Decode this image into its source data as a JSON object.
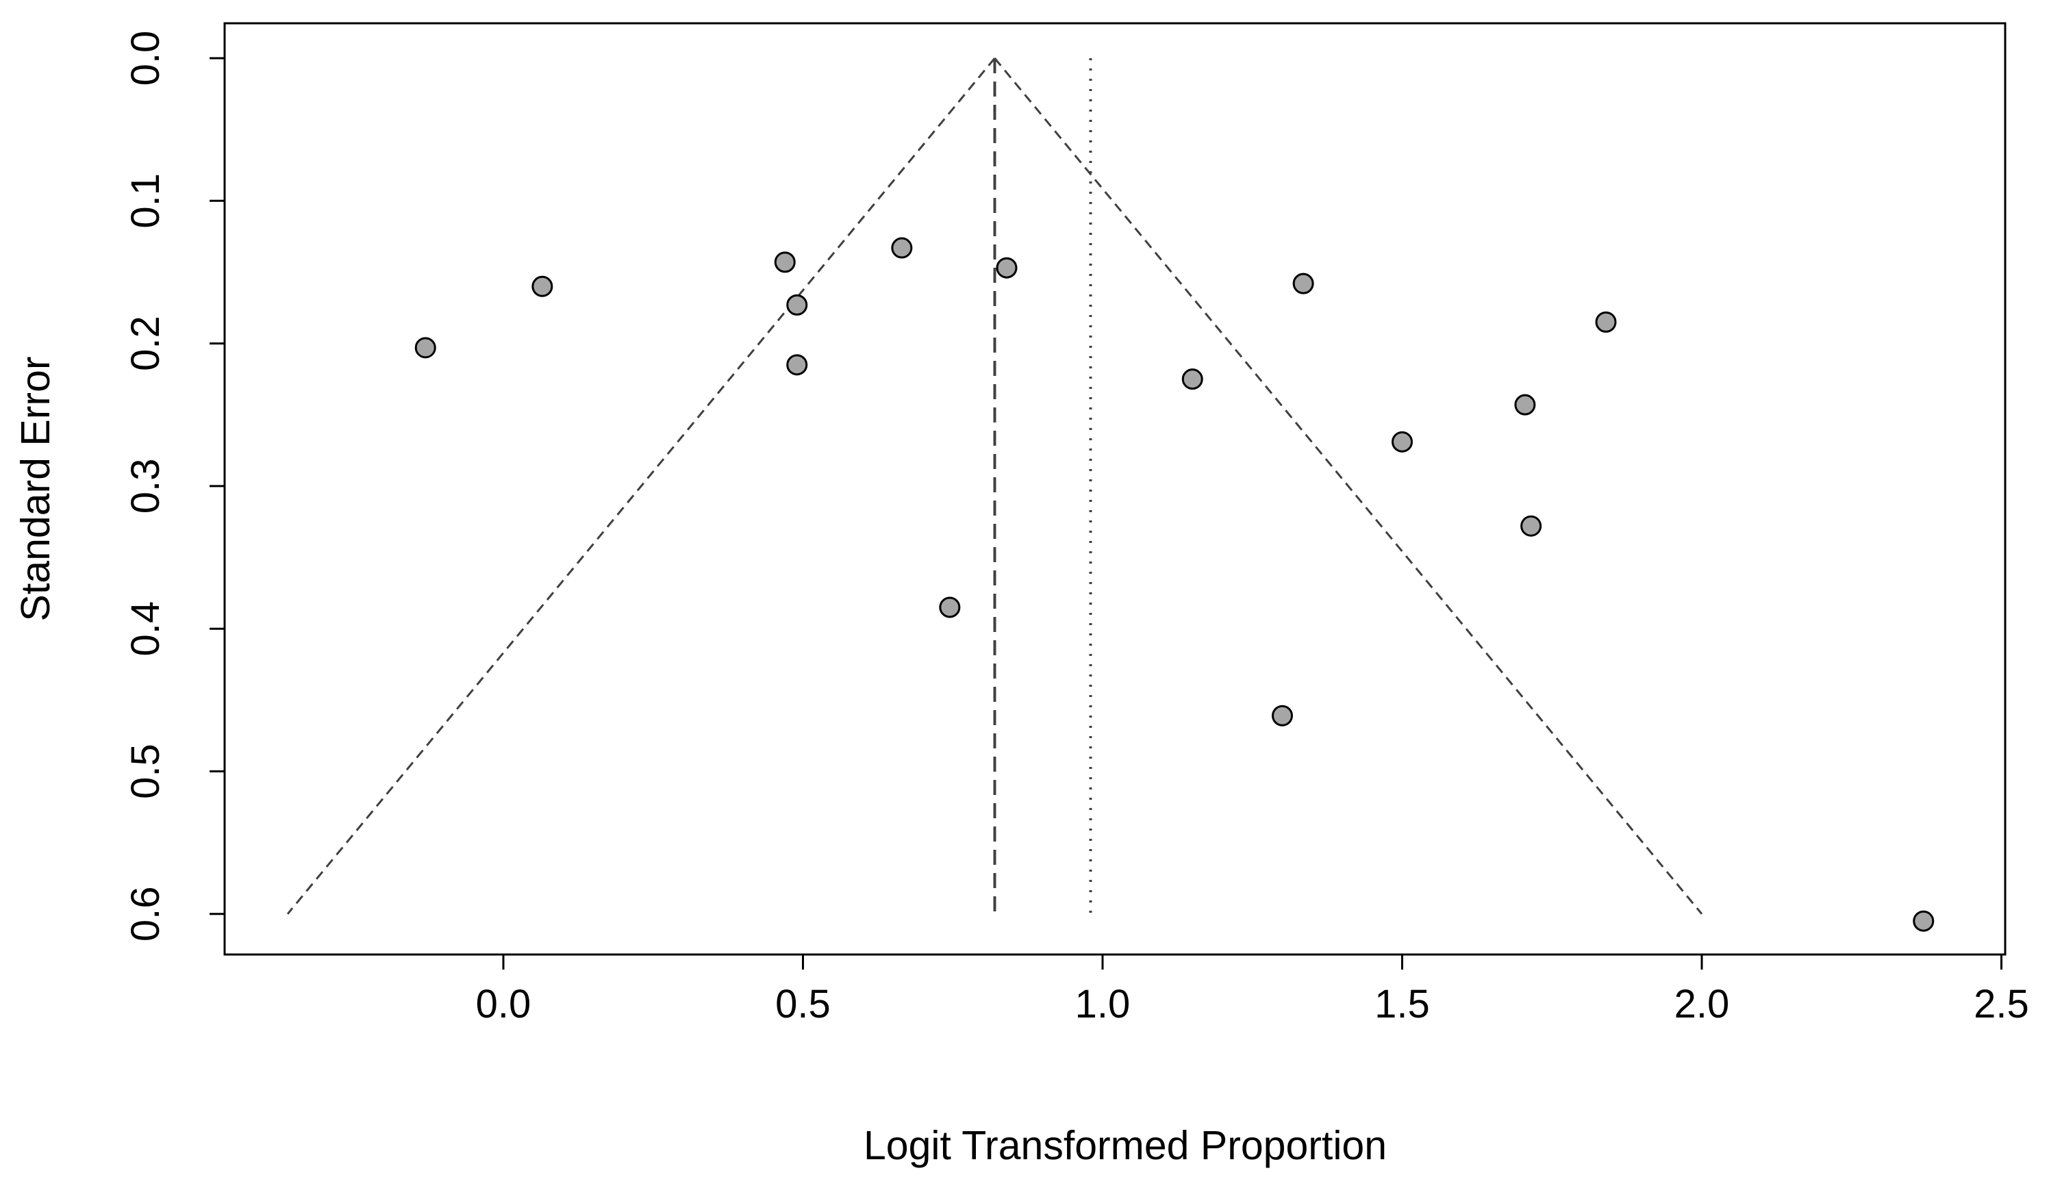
{
  "chart_data": {
    "type": "scatter",
    "subtype": "funnel-plot",
    "title": "",
    "xlabel": "Logit Transformed Proportion",
    "ylabel": "Standard Error",
    "xlim": [
      -0.47,
      2.5
    ],
    "ylim": [
      0.0,
      0.6
    ],
    "y_inverted": true,
    "x_ticks": [
      "0.0",
      "0.5",
      "1.0",
      "1.5",
      "2.0",
      "2.5"
    ],
    "x_tick_values": [
      0.0,
      0.5,
      1.0,
      1.5,
      2.0,
      2.5
    ],
    "y_ticks": [
      "0.0",
      "0.1",
      "0.2",
      "0.3",
      "0.4",
      "0.5",
      "0.6"
    ],
    "y_tick_values": [
      0.0,
      0.1,
      0.2,
      0.3,
      0.4,
      0.5,
      0.6
    ],
    "grid": false,
    "pooled_estimate": 0.82,
    "reference_line": 0.98,
    "funnel_apex": {
      "x": 0.82,
      "y": 0.0
    },
    "funnel_base": {
      "left": {
        "x": -0.36,
        "y": 0.6
      },
      "right": {
        "x": 2.0,
        "y": 0.6
      }
    },
    "point_fill": "#a6a6a6",
    "line_color": "#404040",
    "points": [
      {
        "x": -0.13,
        "y": 0.203
      },
      {
        "x": 0.065,
        "y": 0.16
      },
      {
        "x": 0.47,
        "y": 0.143
      },
      {
        "x": 0.49,
        "y": 0.173
      },
      {
        "x": 0.49,
        "y": 0.215
      },
      {
        "x": 0.665,
        "y": 0.133
      },
      {
        "x": 0.745,
        "y": 0.385
      },
      {
        "x": 0.84,
        "y": 0.147
      },
      {
        "x": 1.15,
        "y": 0.225
      },
      {
        "x": 1.3,
        "y": 0.461
      },
      {
        "x": 1.335,
        "y": 0.158
      },
      {
        "x": 1.5,
        "y": 0.269
      },
      {
        "x": 1.705,
        "y": 0.243
      },
      {
        "x": 1.715,
        "y": 0.328
      },
      {
        "x": 1.84,
        "y": 0.185
      },
      {
        "x": 2.37,
        "y": 0.605
      }
    ]
  }
}
